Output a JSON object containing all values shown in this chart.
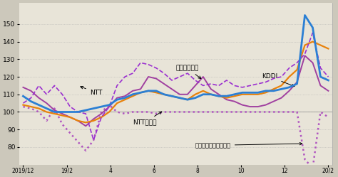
{
  "background_color": "#ccc8bb",
  "plot_bg": "#e8e4d8",
  "ylim": [
    70,
    162
  ],
  "yticks": [
    80,
    90,
    100,
    110,
    120,
    130,
    140,
    150
  ],
  "x_labels": [
    "2019/12",
    "19/2",
    "4",
    "6",
    "8",
    "10",
    "12",
    "20/2"
  ],
  "ntt": [
    105,
    108,
    115,
    110,
    115,
    110,
    103,
    100,
    99,
    84,
    97,
    103,
    115,
    120,
    122,
    128,
    127,
    125,
    122,
    118,
    120,
    122,
    118,
    115,
    116,
    115,
    118,
    115,
    114,
    115,
    116,
    117,
    119,
    120,
    125,
    128,
    133,
    145,
    125,
    120
  ],
  "kddi": [
    109,
    106,
    104,
    102,
    100,
    100,
    100,
    100,
    101,
    102,
    103,
    104,
    107,
    108,
    110,
    111,
    112,
    112,
    110,
    109,
    108,
    107,
    108,
    110,
    110,
    109,
    109,
    110,
    111,
    111,
    111,
    112,
    112,
    113,
    114,
    116,
    155,
    148,
    120,
    118
  ],
  "softbank": [
    114,
    112,
    108,
    105,
    101,
    99,
    97,
    95,
    92,
    96,
    99,
    103,
    108,
    109,
    112,
    113,
    120,
    119,
    116,
    113,
    110,
    110,
    115,
    120,
    113,
    110,
    107,
    106,
    104,
    103,
    103,
    104,
    106,
    108,
    112,
    117,
    132,
    128,
    115,
    112
  ],
  "docomo": [
    104,
    103,
    102,
    100,
    99,
    98,
    97,
    95,
    94,
    95,
    97,
    100,
    105,
    107,
    109,
    111,
    112,
    111,
    110,
    109,
    108,
    107,
    110,
    112,
    110,
    109,
    108,
    109,
    110,
    110,
    110,
    111,
    113,
    115,
    120,
    124,
    138,
    140,
    138,
    136
  ],
  "sbg": [
    103,
    102,
    100,
    95,
    102,
    93,
    88,
    83,
    78,
    84,
    100,
    104,
    100,
    99,
    100,
    100,
    100,
    99,
    100,
    100,
    100,
    100,
    100,
    100,
    100,
    100,
    100,
    100,
    100,
    100,
    100,
    100,
    100,
    100,
    100,
    100,
    73,
    68,
    100,
    97
  ]
}
